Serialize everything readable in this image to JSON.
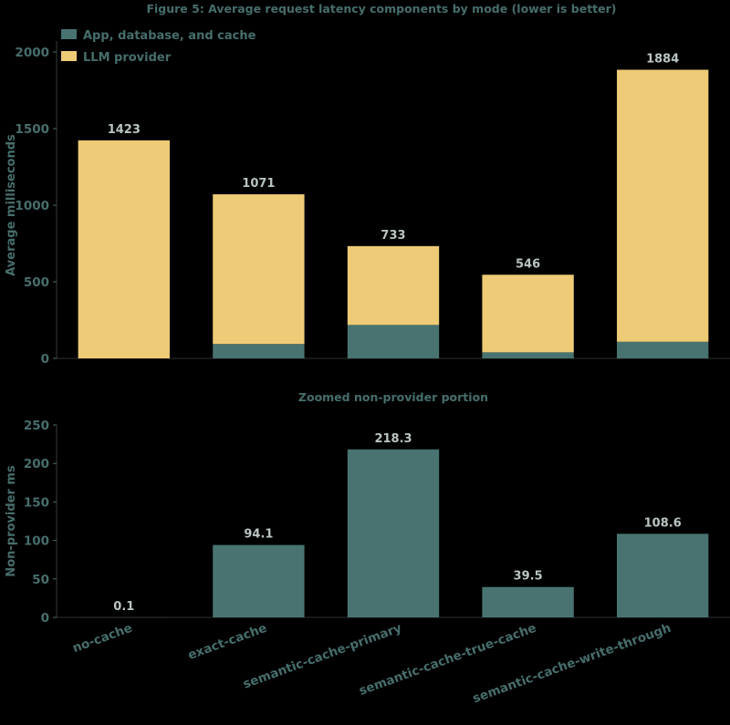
{
  "figure_title": "Figure 5: Average request latency components by mode (lower is better)",
  "colors": {
    "background": "#000000",
    "app_db_cache": "#487371",
    "llm_provider": "#EECB76",
    "axis_text": "#466E6C",
    "label_text": "#B9C4C3"
  },
  "chart_data": [
    {
      "type": "bar",
      "stacked": true,
      "title": "",
      "xlabel": "",
      "ylabel": "Average milliseconds",
      "ylim": [
        0,
        2000
      ],
      "yticks": [
        0,
        500,
        1000,
        1500,
        2000
      ],
      "categories": [
        "no-cache",
        "exact-cache",
        "semantic-cache-primary",
        "semantic-cache-true-cache",
        "semantic-cache-write-through"
      ],
      "series": [
        {
          "name": "App, database, and cache",
          "values": [
            0.1,
            94.1,
            218.3,
            39.5,
            108.6
          ]
        },
        {
          "name": "LLM provider",
          "values": [
            1422.9,
            976.9,
            514.7,
            506.5,
            1775.4
          ]
        }
      ],
      "totals": [
        1423,
        1071,
        733,
        546,
        1884
      ],
      "total_labels": [
        "1423",
        "1071",
        "733",
        "546",
        "1884"
      ],
      "legend": "top-left",
      "grid": false
    },
    {
      "type": "bar",
      "title": "Zoomed non-provider portion",
      "xlabel": "",
      "ylabel": "Non-provider ms",
      "ylim": [
        0,
        250
      ],
      "yticks": [
        0,
        50,
        100,
        150,
        200,
        250
      ],
      "categories": [
        "no-cache",
        "exact-cache",
        "semantic-cache-primary",
        "semantic-cache-true-cache",
        "semantic-cache-write-through"
      ],
      "values": [
        0.1,
        94.1,
        218.3,
        39.5,
        108.6
      ],
      "value_labels": [
        "0.1",
        "94.1",
        "218.3",
        "39.5",
        "108.6"
      ],
      "grid": false
    }
  ]
}
